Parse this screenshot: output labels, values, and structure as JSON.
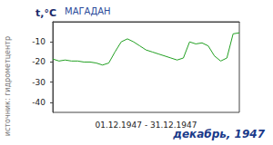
{
  "chart_data": {
    "type": "line",
    "title": "МАГАДАН",
    "subtitle": "декабрь, 1947",
    "xlabel": "01.12.1947 - 31.12.1947",
    "ylabel": "t,°C",
    "annotations": [
      "источник: гидрометцентр"
    ],
    "x": [
      1,
      2,
      3,
      4,
      5,
      6,
      7,
      8,
      9,
      10,
      11,
      12,
      13,
      14,
      15,
      16,
      17,
      18,
      19,
      20,
      21,
      22,
      23,
      24,
      25,
      26,
      27,
      28,
      29,
      30,
      31
    ],
    "values": [
      -18.5,
      -19.5,
      -19,
      -19.5,
      -19.5,
      -20,
      -20,
      -20.5,
      -21.5,
      -20.5,
      -15,
      -10,
      -8.5,
      -10,
      -12,
      -14,
      -15,
      -16,
      -17,
      -18,
      -19,
      -18,
      -10,
      -11,
      -10.5,
      -12,
      -17,
      -19.5,
      -18,
      -6,
      -5.5
    ],
    "color": "#22a022",
    "xlim": [
      1,
      31
    ],
    "ylim": [
      -45,
      0
    ],
    "yticks": [
      -40,
      -30,
      -20,
      -10
    ],
    "tick_labels": "y",
    "grid": false
  }
}
